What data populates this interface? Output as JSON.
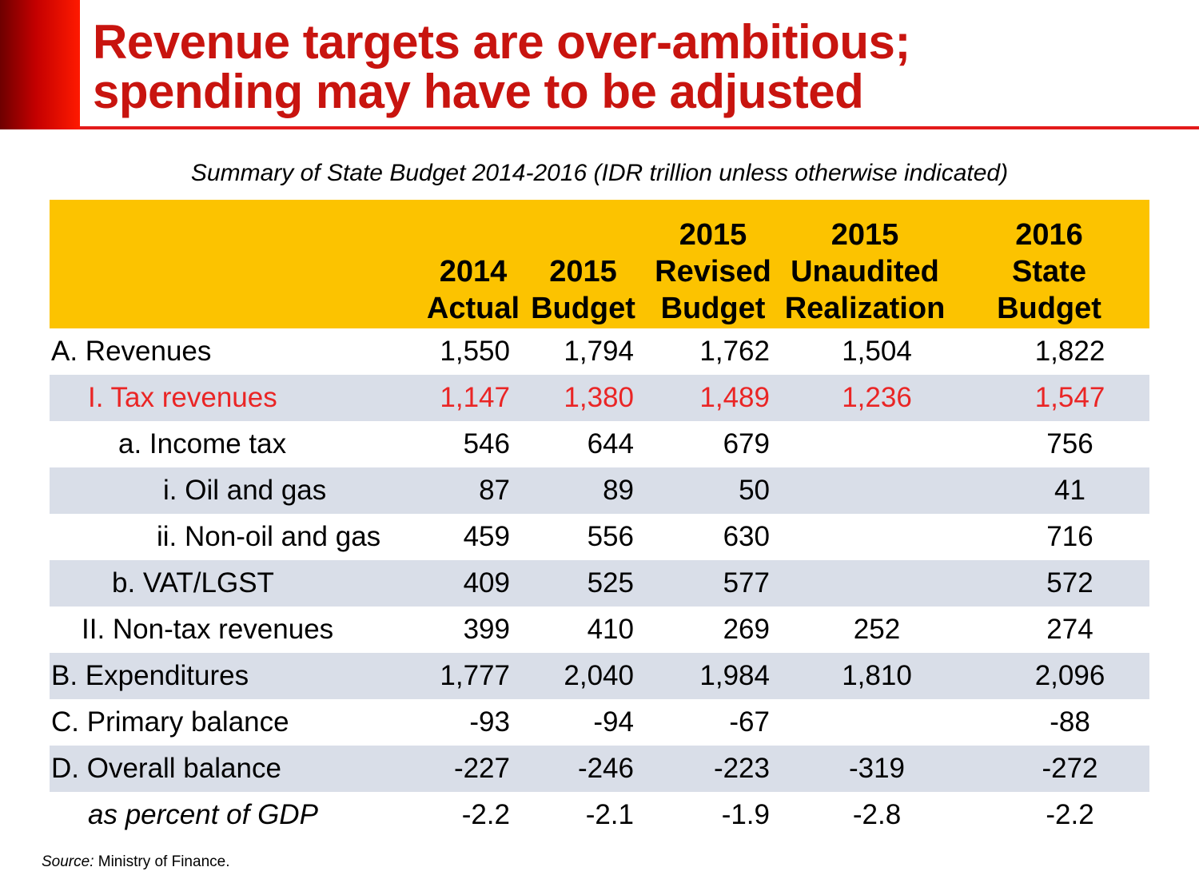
{
  "title": {
    "line1": "Revenue targets are over-ambitious;",
    "line2": "spending may have to be adjusted"
  },
  "subtitle": "Summary of State Budget 2014-2016 (IDR trillion unless otherwise indicated)",
  "colors": {
    "accent_red": "#c8140f",
    "header_yellow": "#fcc300",
    "row_shade": "#d9dee8",
    "highlight_red": "#ea2525"
  },
  "table": {
    "headers": [
      {
        "lines": [
          "2014",
          "Actual"
        ]
      },
      {
        "lines": [
          "2015",
          "Budget"
        ]
      },
      {
        "lines": [
          "2015",
          "Revised",
          "Budget"
        ]
      },
      {
        "lines": [
          "2015",
          "Unaudited",
          "Realization"
        ]
      },
      {
        "lines": [
          "2016",
          "State",
          "Budget"
        ]
      }
    ],
    "rows": [
      {
        "label": "A. Revenues",
        "values": [
          "1,550",
          "1,794",
          "1,762",
          "1,504",
          "1,822"
        ]
      },
      {
        "label": "I. Tax revenues",
        "values": [
          "1,147",
          "1,380",
          "1,489",
          "1,236",
          "1,547"
        ]
      },
      {
        "label": "a. Income tax",
        "values": [
          "546",
          "644",
          "679",
          "",
          "756"
        ]
      },
      {
        "label": "i. Oil and gas",
        "values": [
          "87",
          "89",
          "50",
          "",
          "41"
        ]
      },
      {
        "label": "ii. Non-oil and gas",
        "values": [
          "459",
          "556",
          "630",
          "",
          "716"
        ]
      },
      {
        "label": "b. VAT/LGST",
        "values": [
          "409",
          "525",
          "577",
          "",
          "572"
        ]
      },
      {
        "label": "II. Non-tax revenues",
        "values": [
          "399",
          "410",
          "269",
          "252",
          "274"
        ]
      },
      {
        "label": "B. Expenditures",
        "values": [
          "1,777",
          "2,040",
          "1,984",
          "1,810",
          "2,096"
        ]
      },
      {
        "label": "C. Primary balance",
        "values": [
          "-93",
          "-94",
          "-67",
          "",
          "-88"
        ]
      },
      {
        "label": "D. Overall balance",
        "values": [
          "-227",
          "-246",
          "-223",
          "-319",
          "-272"
        ]
      },
      {
        "label": "as percent of GDP",
        "values": [
          "-2.2",
          "-2.1",
          "-1.9",
          "-2.8",
          "-2.2"
        ]
      }
    ]
  },
  "source": {
    "label": "Source:",
    "text": " Ministry of Finance."
  }
}
